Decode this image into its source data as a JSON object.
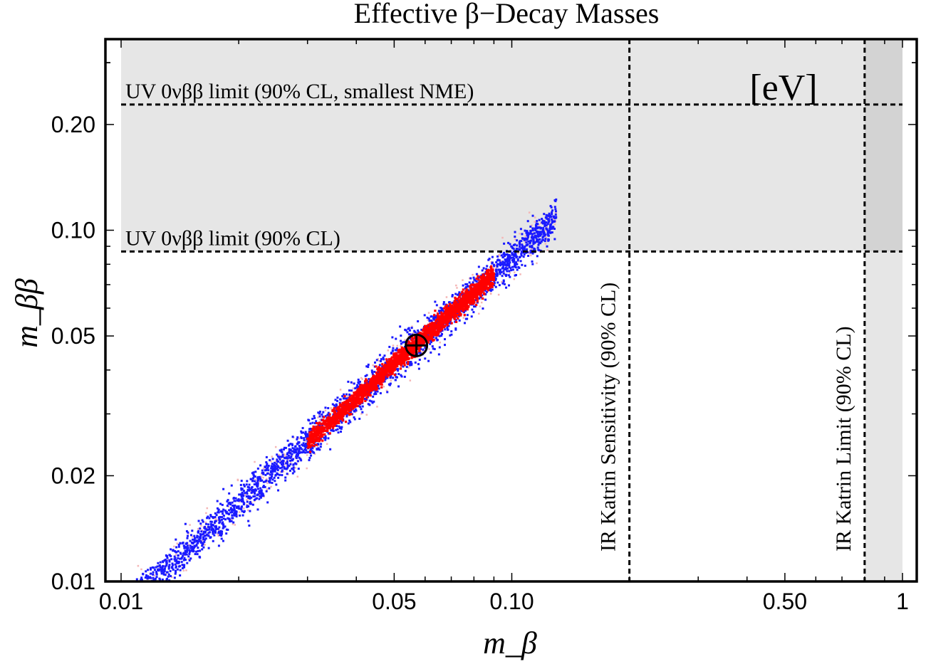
{
  "chart_data": {
    "type": "scatter",
    "title": "Effective β−Decay Masses",
    "xlabel": "m_β",
    "ylabel": "m_ββ",
    "x_scale": "log",
    "y_scale": "log",
    "xlim": [
      0.01,
      1.0
    ],
    "ylim": [
      0.01,
      0.35
    ],
    "unit_annotation": "[eV]",
    "x_ticks": [
      {
        "value": 0.01,
        "label": "0.01"
      },
      {
        "value": 0.05,
        "label": "0.05"
      },
      {
        "value": 0.1,
        "label": "0.10"
      },
      {
        "value": 0.5,
        "label": "0.50"
      },
      {
        "value": 1.0,
        "label": "1"
      }
    ],
    "y_ticks": [
      {
        "value": 0.01,
        "label": "0.01"
      },
      {
        "value": 0.02,
        "label": "0.02"
      },
      {
        "value": 0.05,
        "label": "0.05"
      },
      {
        "value": 0.1,
        "label": "0.10"
      },
      {
        "value": 0.2,
        "label": "0.20"
      }
    ],
    "hlines": [
      {
        "value": 0.228,
        "label": "UV 0νββ limit (90% CL, smallest NME)"
      },
      {
        "value": 0.087,
        "label": "UV 0νββ limit (90% CL)"
      }
    ],
    "vlines": [
      {
        "value": 0.2,
        "label": "IR Katrin Sensitivity (90% CL)"
      },
      {
        "value": 0.8,
        "label": "IR Katrin Limit (90% CL)"
      }
    ],
    "shaded_regions": [
      {
        "name": "excluded-mbb",
        "y_min": 0.087,
        "x_min": 0.01,
        "x_max": 1.0,
        "color": "#e6e6e6"
      },
      {
        "name": "excluded-mb",
        "x_min": 0.8,
        "x_max": 1.0,
        "color": "#e6e6e6"
      },
      {
        "name": "excluded-overlap",
        "x_min": 0.8,
        "x_max": 1.0,
        "y_min": 0.087,
        "color": "#d3d3d3"
      }
    ],
    "series": [
      {
        "name": "outer-scatter",
        "color": "#1a1aff",
        "x_range": [
          0.01,
          0.13
        ],
        "relation": "m_ββ ≈ 0.83·m_β"
      },
      {
        "name": "core-scatter",
        "color": "#ff0000",
        "x_range": [
          0.03,
          0.09
        ],
        "relation": "m_ββ ≈ 0.83·m_β"
      },
      {
        "name": "light-scatter",
        "color": "#f4b6b6",
        "x_range": [
          0.011,
          0.13
        ],
        "relation": "m_ββ ≈ 0.83·m_β"
      }
    ],
    "best_fit": {
      "x": 0.057,
      "y": 0.047,
      "symbol": "⊕"
    }
  }
}
